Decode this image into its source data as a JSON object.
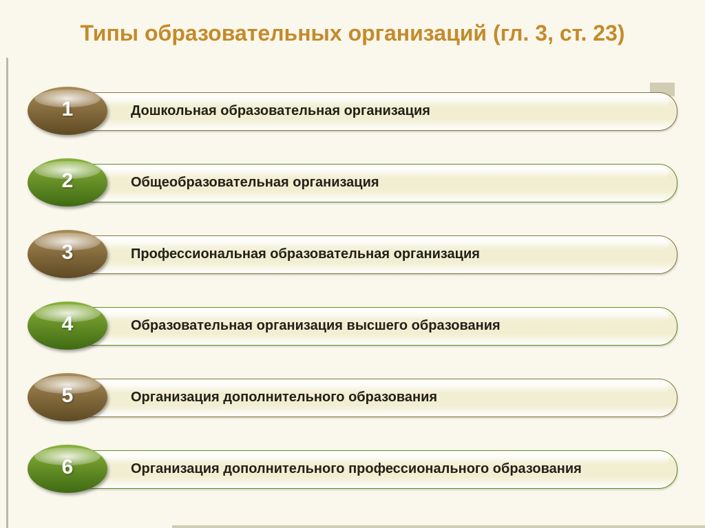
{
  "title": "Типы образовательных организаций (гл. 3, ст. 23)",
  "colors": {
    "background": "#faf8ed",
    "title": "#c58a2a",
    "vertical_bar": "#7a7861",
    "decorative_bar": "#d0cdb4",
    "bar_fill_top": "#ffffff",
    "bar_fill_mid": "#f1eed2",
    "text": "#222018"
  },
  "items": [
    {
      "num": "1",
      "label": "Дошкольная образовательная организация",
      "bubble_gradient_top": "#a98b56",
      "bubble_gradient_bottom": "#5f4a24",
      "bar_border": "#8a7338"
    },
    {
      "num": "2",
      "label": "Общеобразовательная организация",
      "bubble_gradient_top": "#8ab23a",
      "bubble_gradient_bottom": "#3f6a12",
      "bar_border": "#5f8c1f"
    },
    {
      "num": "3",
      "label": "Профессиональная образовательная организация",
      "bubble_gradient_top": "#a98b56",
      "bubble_gradient_bottom": "#5f4a24",
      "bar_border": "#8a7338"
    },
    {
      "num": "4",
      "label": "Образовательная организация высшего образования",
      "bubble_gradient_top": "#8ab23a",
      "bubble_gradient_bottom": "#3f6a12",
      "bar_border": "#5f8c1f"
    },
    {
      "num": "5",
      "label": "Организация дополнительного образования",
      "bubble_gradient_top": "#a98b56",
      "bubble_gradient_bottom": "#5f4a24",
      "bar_border": "#8a7338"
    },
    {
      "num": "6",
      "label": "Организация дополнительного профессионального образования",
      "bubble_gradient_top": "#8ab23a",
      "bubble_gradient_bottom": "#3f6a12",
      "bar_border": "#5f8c1f"
    }
  ]
}
